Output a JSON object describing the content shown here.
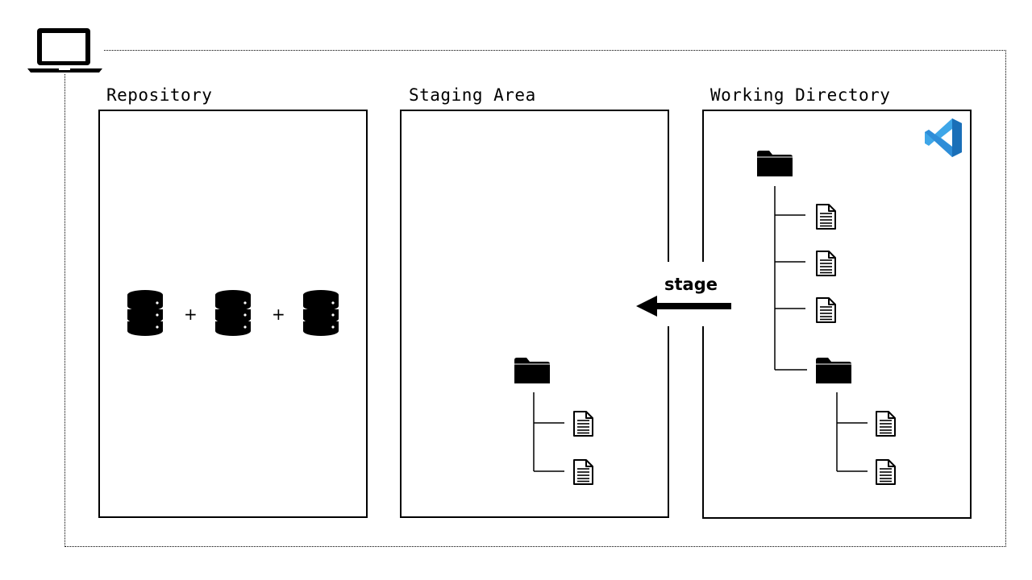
{
  "sections": {
    "repository": "Repository",
    "staging": "Staging Area",
    "working": "Working Directory"
  },
  "arrow_label": "stage",
  "operators": [
    "+",
    "+"
  ],
  "icons": {
    "computer": "laptop-icon",
    "database": "database-icon",
    "folder": "folder-icon",
    "file": "file-icon",
    "editor": "vscode-icon"
  },
  "colors": {
    "vscode_light": "#3ea6e8",
    "vscode_dark": "#1a6fb8"
  }
}
